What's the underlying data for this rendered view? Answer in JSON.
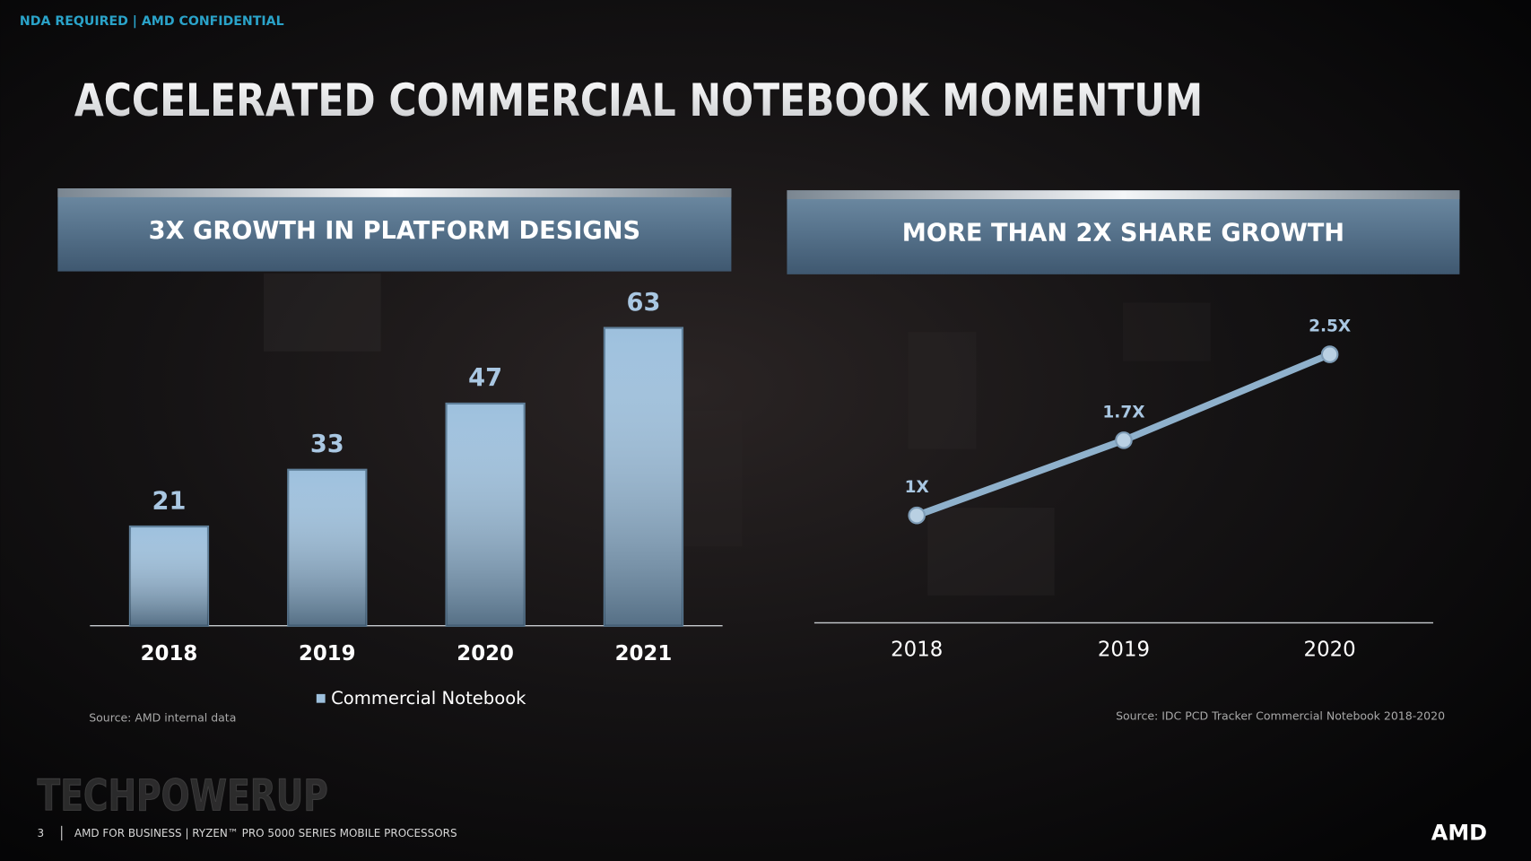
{
  "header": {
    "confidential": "NDA REQUIRED | AMD CONFIDENTIAL",
    "title": "ACCELERATED COMMERCIAL NOTEBOOK MOMENTUM"
  },
  "chart_data": [
    {
      "type": "bar",
      "title": "3X GROWTH IN PLATFORM DESIGNS",
      "categories": [
        "2018",
        "2019",
        "2020",
        "2021"
      ],
      "series": [
        {
          "name": "Commercial Notebook",
          "color": "#9dc0dd",
          "values": [
            21,
            33,
            47,
            63
          ]
        }
      ],
      "ylim": [
        0,
        70
      ],
      "source": "Source: AMD internal data"
    },
    {
      "type": "line",
      "title": "MORE THAN 2X SHARE GROWTH",
      "categories": [
        "2018",
        "2019",
        "2020"
      ],
      "values": [
        1,
        1.7,
        2.5
      ],
      "value_labels": [
        "1X",
        "1.7X",
        "2.5X"
      ],
      "color": "#8fb1cc",
      "ylim": [
        0,
        3
      ],
      "source": "Source: IDC PCD Tracker Commercial Notebook 2018-2020"
    }
  ],
  "watermark": "TECHPOWERUP",
  "footer": {
    "page": "3",
    "text": "AMD FOR BUSINESS | RYZEN™ PRO 5000 SERIES MOBILE PROCESSORS",
    "logo": "AMD"
  }
}
